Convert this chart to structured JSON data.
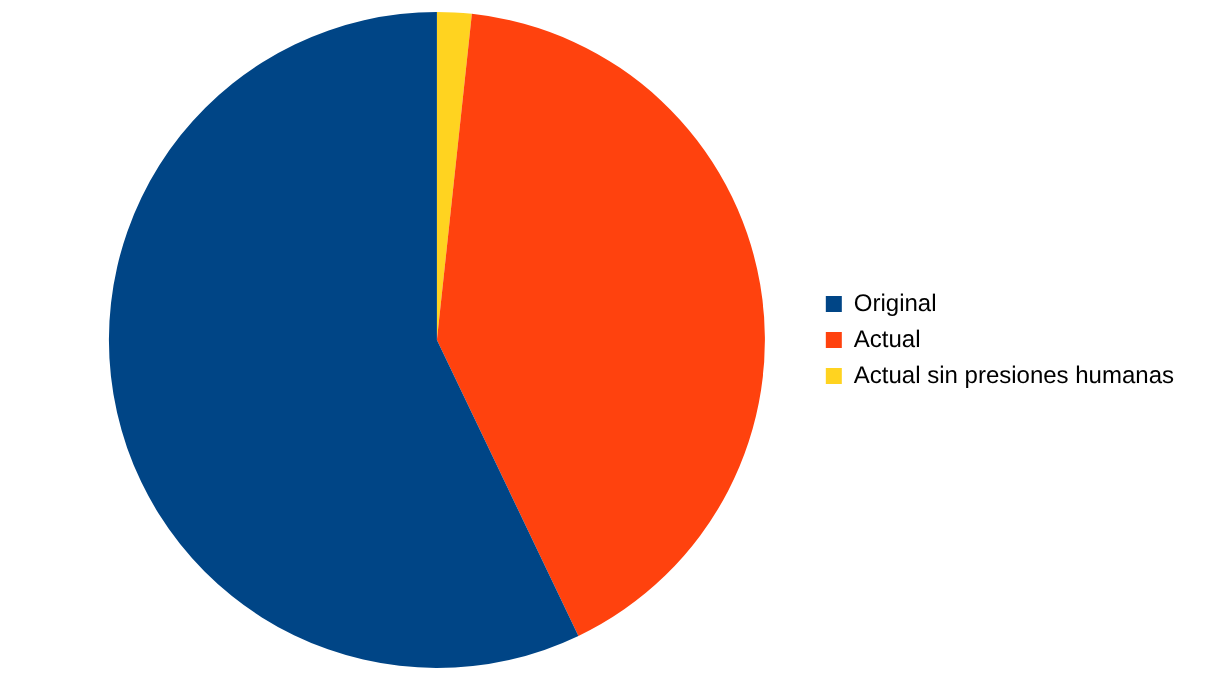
{
  "chart_data": {
    "type": "pie",
    "categories": [
      "Original",
      "Actual",
      "Actual sin presiones humanas"
    ],
    "values": [
      57.1,
      41.2,
      1.7
    ],
    "colors": [
      "#004586",
      "#ff420e",
      "#ffd320"
    ],
    "legend": "right"
  }
}
